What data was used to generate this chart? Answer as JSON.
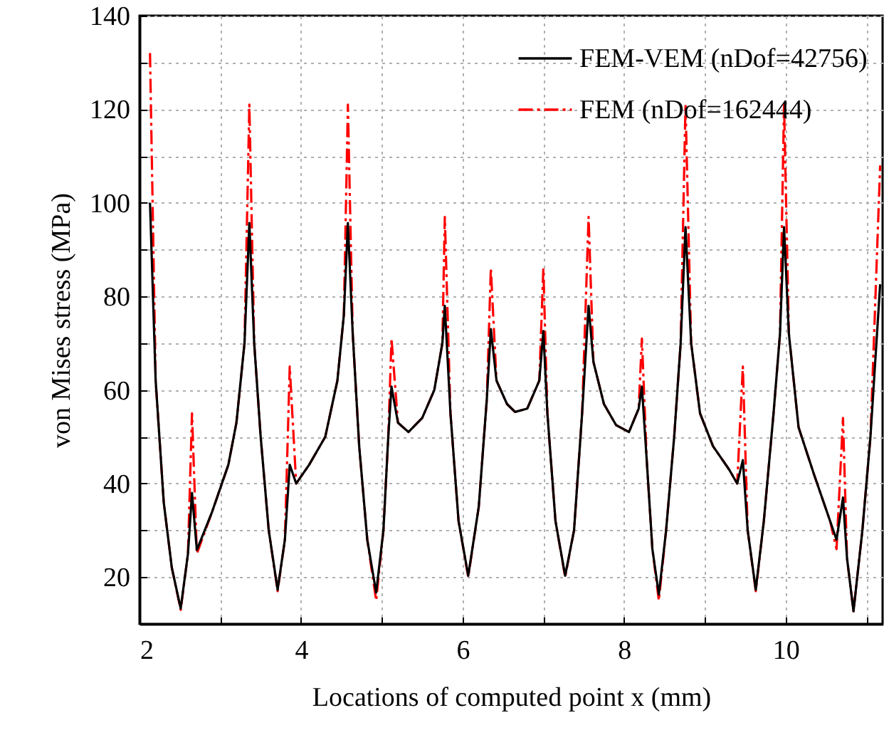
{
  "chart_data": {
    "type": "line",
    "xlabel": "Locations of computed point x (mm)",
    "ylabel": "von Mises stress (MPa)",
    "xlim": [
      2,
      11.2
    ],
    "ylim": [
      10,
      140
    ],
    "xticks": [
      2,
      {
        "value": 3,
        "label": null
      },
      4,
      {
        "value": 5,
        "label": null
      },
      6,
      {
        "value": 7,
        "label": null
      },
      8,
      {
        "value": 9,
        "label": null
      },
      10,
      {
        "value": 11,
        "label": null
      }
    ],
    "yticks": [
      20,
      {
        "value": 30,
        "label": null
      },
      40,
      {
        "value": 50,
        "label": null
      },
      60,
      {
        "value": 70,
        "label": null
      },
      80,
      {
        "value": 90,
        "label": null
      },
      100,
      {
        "value": 110,
        "label": null
      },
      120,
      {
        "value": 130,
        "label": null
      },
      140
    ],
    "grid": true,
    "legend": "top right",
    "x": [
      2.13,
      2.2,
      2.3,
      2.4,
      2.51,
      2.6,
      2.65,
      2.71,
      2.9,
      3.1,
      3.2,
      3.3,
      3.36,
      3.42,
      3.5,
      3.6,
      3.71,
      3.8,
      3.86,
      3.94,
      4.1,
      4.3,
      4.45,
      4.53,
      4.58,
      4.64,
      4.72,
      4.82,
      4.93,
      5.02,
      5.08,
      5.12,
      5.2,
      5.33,
      5.5,
      5.65,
      5.75,
      5.78,
      5.85,
      5.95,
      6.07,
      6.2,
      6.3,
      6.35,
      6.42,
      6.55,
      6.65,
      6.8,
      6.95,
      7.0,
      7.05,
      7.15,
      7.27,
      7.38,
      7.48,
      7.56,
      7.62,
      7.75,
      7.9,
      8.06,
      8.18,
      8.22,
      8.28,
      8.35,
      8.43,
      8.52,
      8.62,
      8.7,
      8.76,
      8.83,
      8.94,
      9.1,
      9.3,
      9.4,
      9.47,
      9.53,
      9.63,
      9.73,
      9.85,
      9.93,
      9.98,
      10.04,
      10.16,
      10.35,
      10.55,
      10.63,
      10.71,
      10.76,
      10.84,
      10.95,
      11.05,
      11.17
    ],
    "series": [
      {
        "name": "FEM-VEM (nDof=42756)",
        "color": "#000000",
        "line_style": "solid",
        "values": [
          100,
          62,
          36,
          22,
          13.3,
          25,
          38,
          25.8,
          34,
          44,
          53,
          70,
          95.7,
          70,
          50,
          30,
          17.3,
          28,
          44,
          40,
          44,
          50,
          62,
          76,
          95.7,
          72,
          48,
          28,
          16.7,
          30,
          50,
          60.7,
          53,
          51,
          54,
          60,
          70,
          78,
          55,
          32,
          20.3,
          35,
          58,
          73,
          62,
          57,
          55.3,
          56,
          62,
          72.6,
          55,
          32,
          20.3,
          30,
          55,
          78,
          66,
          57,
          52.5,
          51,
          56,
          60.7,
          45,
          26,
          16.3,
          30,
          50,
          70,
          94.8,
          70,
          55,
          48,
          43,
          40,
          45,
          30,
          17.3,
          32,
          55,
          72,
          94.8,
          72,
          52,
          42,
          32,
          28,
          37,
          24,
          12.7,
          30,
          50,
          82.6
        ]
      },
      {
        "name": "FEM (nDof=162444)",
        "color": "#ff0000",
        "line_style": "dashed",
        "values": [
          132,
          62,
          36,
          22,
          13,
          25,
          55,
          25,
          34,
          44,
          53,
          70,
          121,
          70,
          50,
          30,
          17,
          28,
          65,
          40,
          44,
          50,
          62,
          76,
          121,
          72,
          48,
          28,
          15,
          30,
          50,
          71,
          53,
          51,
          54,
          60,
          70,
          97,
          55,
          32,
          20,
          35,
          58,
          86,
          62,
          57,
          55.3,
          56,
          62,
          86,
          55,
          32,
          20,
          30,
          55,
          97,
          66,
          57,
          52.5,
          51,
          56,
          71,
          45,
          26,
          15,
          30,
          50,
          70,
          121,
          70,
          55,
          48,
          43,
          40,
          65,
          30,
          17,
          32,
          55,
          72,
          121,
          72,
          52,
          42,
          32,
          26,
          54,
          24,
          12.7,
          30,
          50,
          108
        ]
      }
    ]
  }
}
